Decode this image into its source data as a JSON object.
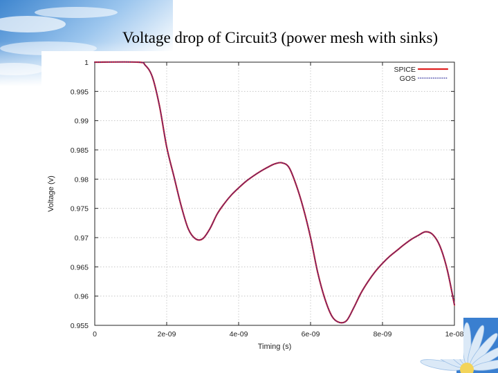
{
  "slide": {
    "title": "Voltage drop of Circuit3 (power mesh with sinks)"
  },
  "chart_data": {
    "type": "line",
    "title": "",
    "xlabel": "Timing (s)",
    "ylabel": "Voltage (v)",
    "xlim": [
      0,
      1e-08
    ],
    "ylim": [
      0.955,
      1.0
    ],
    "grid": true,
    "legend": "top-right",
    "x_tick_values": [
      0,
      2e-09,
      4e-09,
      6e-09,
      8e-09,
      1e-08
    ],
    "x_tick_labels": [
      "0",
      "2e-09",
      "4e-09",
      "6e-09",
      "8e-09",
      "1e-08"
    ],
    "y_tick_values": [
      0.955,
      0.96,
      0.965,
      0.97,
      0.975,
      0.98,
      0.985,
      0.99,
      0.995,
      1.0
    ],
    "y_tick_labels": [
      "0.955",
      "0.96",
      "0.965",
      "0.97",
      "0.975",
      "0.98",
      "0.985",
      "0.99",
      "0.995",
      "1"
    ],
    "x": [
      0,
      1.2e-09,
      1.4e-09,
      1.6e-09,
      1.8e-09,
      2e-09,
      2.2e-09,
      2.4e-09,
      2.6e-09,
      2.8e-09,
      3e-09,
      3.2e-09,
      3.4e-09,
      3.6e-09,
      3.8e-09,
      4e-09,
      4.2e-09,
      4.4e-09,
      4.6e-09,
      4.8e-09,
      5e-09,
      5.2e-09,
      5.4e-09,
      5.6e-09,
      5.8e-09,
      6e-09,
      6.2e-09,
      6.4e-09,
      6.6e-09,
      6.8e-09,
      7e-09,
      7.2e-09,
      7.4e-09,
      7.6e-09,
      7.8e-09,
      8e-09,
      8.2e-09,
      8.4e-09,
      8.6e-09,
      8.8e-09,
      9e-09,
      9.2e-09,
      9.4e-09,
      9.6e-09,
      9.8e-09,
      1e-08
    ],
    "series": [
      {
        "name": "SPICE",
        "color": "#e02020",
        "style": "solid",
        "values": [
          1.0,
          1.0,
          0.9995,
          0.9975,
          0.9925,
          0.9855,
          0.9805,
          0.9755,
          0.9715,
          0.9698,
          0.9698,
          0.9715,
          0.974,
          0.9758,
          0.9773,
          0.9785,
          0.9796,
          0.9805,
          0.9813,
          0.982,
          0.9826,
          0.9828,
          0.982,
          0.979,
          0.975,
          0.97,
          0.964,
          0.9595,
          0.9565,
          0.9555,
          0.9558,
          0.958,
          0.9605,
          0.9625,
          0.9642,
          0.9656,
          0.9668,
          0.9678,
          0.9688,
          0.9697,
          0.9704,
          0.971,
          0.9705,
          0.9685,
          0.9645,
          0.9585
        ]
      },
      {
        "name": "GOS",
        "color": "#2a2a9a",
        "style": "dotted",
        "values": [
          1.0,
          1.0,
          0.9995,
          0.9975,
          0.9925,
          0.9855,
          0.9805,
          0.9755,
          0.9715,
          0.9698,
          0.9698,
          0.9715,
          0.974,
          0.9758,
          0.9773,
          0.9785,
          0.9796,
          0.9805,
          0.9813,
          0.982,
          0.9826,
          0.9828,
          0.982,
          0.979,
          0.975,
          0.97,
          0.964,
          0.9595,
          0.9565,
          0.9555,
          0.9558,
          0.958,
          0.9605,
          0.9625,
          0.9642,
          0.9656,
          0.9668,
          0.9678,
          0.9688,
          0.9697,
          0.9704,
          0.971,
          0.9705,
          0.9685,
          0.9645,
          0.9585
        ]
      }
    ]
  }
}
